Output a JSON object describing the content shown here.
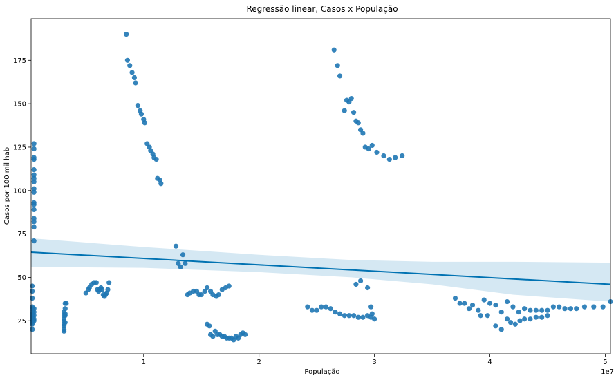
{
  "chart_data": {
    "type": "scatter",
    "title": "Regressão linear, Casos x População",
    "xlabel": "População",
    "ylabel": "Casos por 100 mil hab",
    "x_offset_label": "1e7",
    "xlim": [
      0.025,
      5.045
    ],
    "ylim": [
      6,
      199
    ],
    "x_ticks": [
      1,
      2,
      3,
      4,
      5
    ],
    "x_tick_labels": [
      "1",
      "2",
      "3",
      "4",
      "5"
    ],
    "y_ticks": [
      25,
      50,
      75,
      100,
      125,
      150,
      175
    ],
    "y_tick_labels": [
      "25",
      "50",
      "75",
      "100",
      "125",
      "150",
      "175"
    ],
    "grid": false,
    "legend": "none",
    "colors": {
      "points": "#1f77b4",
      "regression": "#0072b2",
      "ci_band": "#c7e0ef"
    },
    "regression": {
      "x": [
        0.025,
        5.045
      ],
      "y": [
        64.5,
        46
      ]
    },
    "confidence_band": {
      "x": [
        0.025,
        1.0,
        2.0,
        2.8,
        3.5,
        4.2,
        5.045
      ],
      "upper": [
        72.5,
        67.5,
        63,
        60,
        59,
        59,
        58.5
      ],
      "lower": [
        56,
        55.5,
        53,
        50,
        46,
        40,
        36
      ]
    },
    "points": [
      [
        0.035,
        45
      ],
      [
        0.035,
        42
      ],
      [
        0.035,
        38
      ],
      [
        0.035,
        33
      ],
      [
        0.035,
        32
      ],
      [
        0.035,
        30
      ],
      [
        0.035,
        29
      ],
      [
        0.035,
        28
      ],
      [
        0.035,
        27
      ],
      [
        0.035,
        26
      ],
      [
        0.035,
        25
      ],
      [
        0.035,
        24
      ],
      [
        0.035,
        23
      ],
      [
        0.035,
        20
      ],
      [
        0.05,
        127
      ],
      [
        0.05,
        124
      ],
      [
        0.05,
        119
      ],
      [
        0.05,
        118
      ],
      [
        0.05,
        112
      ],
      [
        0.05,
        109
      ],
      [
        0.05,
        107
      ],
      [
        0.05,
        105
      ],
      [
        0.05,
        101
      ],
      [
        0.05,
        99
      ],
      [
        0.05,
        93
      ],
      [
        0.05,
        92
      ],
      [
        0.05,
        89
      ],
      [
        0.05,
        84
      ],
      [
        0.05,
        82
      ],
      [
        0.05,
        79
      ],
      [
        0.05,
        71
      ],
      [
        0.05,
        32
      ],
      [
        0.05,
        30
      ],
      [
        0.05,
        28
      ],
      [
        0.05,
        26
      ],
      [
        0.05,
        25
      ],
      [
        0.32,
        35
      ],
      [
        0.33,
        35
      ],
      [
        0.32,
        32
      ],
      [
        0.31,
        30
      ],
      [
        0.32,
        29
      ],
      [
        0.31,
        28
      ],
      [
        0.31,
        25
      ],
      [
        0.32,
        24
      ],
      [
        0.31,
        23
      ],
      [
        0.31,
        22
      ],
      [
        0.31,
        20
      ],
      [
        0.31,
        19
      ],
      [
        0.32,
        28
      ],
      [
        0.31,
        26
      ],
      [
        0.5,
        41
      ],
      [
        0.52,
        43
      ],
      [
        0.53,
        44
      ],
      [
        0.55,
        46
      ],
      [
        0.57,
        47
      ],
      [
        0.59,
        47
      ],
      [
        0.6,
        43
      ],
      [
        0.61,
        42
      ],
      [
        0.62,
        43
      ],
      [
        0.63,
        44
      ],
      [
        0.64,
        43
      ],
      [
        0.65,
        40
      ],
      [
        0.66,
        39
      ],
      [
        0.67,
        40
      ],
      [
        0.68,
        41
      ],
      [
        0.69,
        43
      ],
      [
        0.7,
        47
      ],
      [
        0.85,
        190
      ],
      [
        0.86,
        175
      ],
      [
        0.88,
        172
      ],
      [
        0.9,
        168
      ],
      [
        0.92,
        165
      ],
      [
        0.93,
        162
      ],
      [
        0.95,
        149
      ],
      [
        0.97,
        146
      ],
      [
        0.98,
        144
      ],
      [
        1.0,
        141
      ],
      [
        1.01,
        139
      ],
      [
        1.03,
        127
      ],
      [
        1.05,
        125
      ],
      [
        1.06,
        123
      ],
      [
        1.08,
        121
      ],
      [
        1.09,
        119
      ],
      [
        1.11,
        118
      ],
      [
        1.12,
        107
      ],
      [
        1.14,
        106
      ],
      [
        1.15,
        104
      ],
      [
        1.28,
        68
      ],
      [
        1.3,
        58
      ],
      [
        1.32,
        56
      ],
      [
        1.34,
        63
      ],
      [
        1.36,
        58
      ],
      [
        1.38,
        40
      ],
      [
        1.4,
        41
      ],
      [
        1.43,
        42
      ],
      [
        1.46,
        42
      ],
      [
        1.48,
        40
      ],
      [
        1.5,
        40
      ],
      [
        1.53,
        42
      ],
      [
        1.55,
        44
      ],
      [
        1.58,
        42
      ],
      [
        1.6,
        40
      ],
      [
        1.63,
        39
      ],
      [
        1.65,
        40
      ],
      [
        1.68,
        43
      ],
      [
        1.71,
        44
      ],
      [
        1.74,
        45
      ],
      [
        1.55,
        23
      ],
      [
        1.57,
        22
      ],
      [
        1.58,
        17
      ],
      [
        1.6,
        16
      ],
      [
        1.62,
        19
      ],
      [
        1.64,
        17
      ],
      [
        1.66,
        17
      ],
      [
        1.68,
        16
      ],
      [
        1.7,
        16
      ],
      [
        1.72,
        15
      ],
      [
        1.74,
        15
      ],
      [
        1.76,
        15
      ],
      [
        1.78,
        14
      ],
      [
        1.8,
        16
      ],
      [
        1.82,
        15
      ],
      [
        1.84,
        17
      ],
      [
        1.86,
        18
      ],
      [
        1.88,
        17
      ],
      [
        2.42,
        33
      ],
      [
        2.46,
        31
      ],
      [
        2.5,
        31
      ],
      [
        2.54,
        33
      ],
      [
        2.58,
        33
      ],
      [
        2.62,
        32
      ],
      [
        2.66,
        30
      ],
      [
        2.7,
        29
      ],
      [
        2.74,
        28
      ],
      [
        2.78,
        28
      ],
      [
        2.82,
        28
      ],
      [
        2.86,
        27
      ],
      [
        2.9,
        27
      ],
      [
        2.94,
        28
      ],
      [
        2.97,
        27
      ],
      [
        3.0,
        26
      ],
      [
        2.98,
        29
      ],
      [
        2.97,
        33
      ],
      [
        2.84,
        46
      ],
      [
        2.88,
        48
      ],
      [
        2.94,
        44
      ],
      [
        2.65,
        181
      ],
      [
        2.68,
        172
      ],
      [
        2.7,
        166
      ],
      [
        2.74,
        146
      ],
      [
        2.76,
        152
      ],
      [
        2.78,
        151
      ],
      [
        2.8,
        153
      ],
      [
        2.82,
        145
      ],
      [
        2.84,
        140
      ],
      [
        2.86,
        139
      ],
      [
        2.88,
        135
      ],
      [
        2.9,
        133
      ],
      [
        2.92,
        125
      ],
      [
        2.95,
        124
      ],
      [
        2.98,
        126
      ],
      [
        3.02,
        122
      ],
      [
        3.08,
        120
      ],
      [
        3.13,
        118
      ],
      [
        3.18,
        119
      ],
      [
        3.24,
        120
      ],
      [
        3.7,
        38
      ],
      [
        3.74,
        35
      ],
      [
        3.78,
        35
      ],
      [
        3.82,
        32
      ],
      [
        3.85,
        34
      ],
      [
        3.9,
        31
      ],
      [
        3.92,
        28
      ],
      [
        3.95,
        37
      ],
      [
        3.98,
        28
      ],
      [
        4.0,
        35
      ],
      [
        4.05,
        34
      ],
      [
        4.1,
        30
      ],
      [
        4.15,
        36
      ],
      [
        4.2,
        33
      ],
      [
        4.25,
        30
      ],
      [
        4.3,
        32
      ],
      [
        4.35,
        31
      ],
      [
        4.4,
        31
      ],
      [
        4.45,
        31
      ],
      [
        4.5,
        31
      ],
      [
        4.55,
        33
      ],
      [
        4.6,
        33
      ],
      [
        4.65,
        32
      ],
      [
        4.7,
        32
      ],
      [
        4.75,
        32
      ],
      [
        4.82,
        33
      ],
      [
        4.9,
        33
      ],
      [
        4.98,
        33
      ],
      [
        5.045,
        36
      ],
      [
        4.05,
        22
      ],
      [
        4.1,
        20
      ],
      [
        4.15,
        26
      ],
      [
        4.18,
        24
      ],
      [
        4.22,
        23
      ],
      [
        4.26,
        25
      ],
      [
        4.3,
        26
      ],
      [
        4.35,
        26
      ],
      [
        4.4,
        27
      ],
      [
        4.45,
        27
      ],
      [
        4.5,
        28
      ]
    ]
  }
}
